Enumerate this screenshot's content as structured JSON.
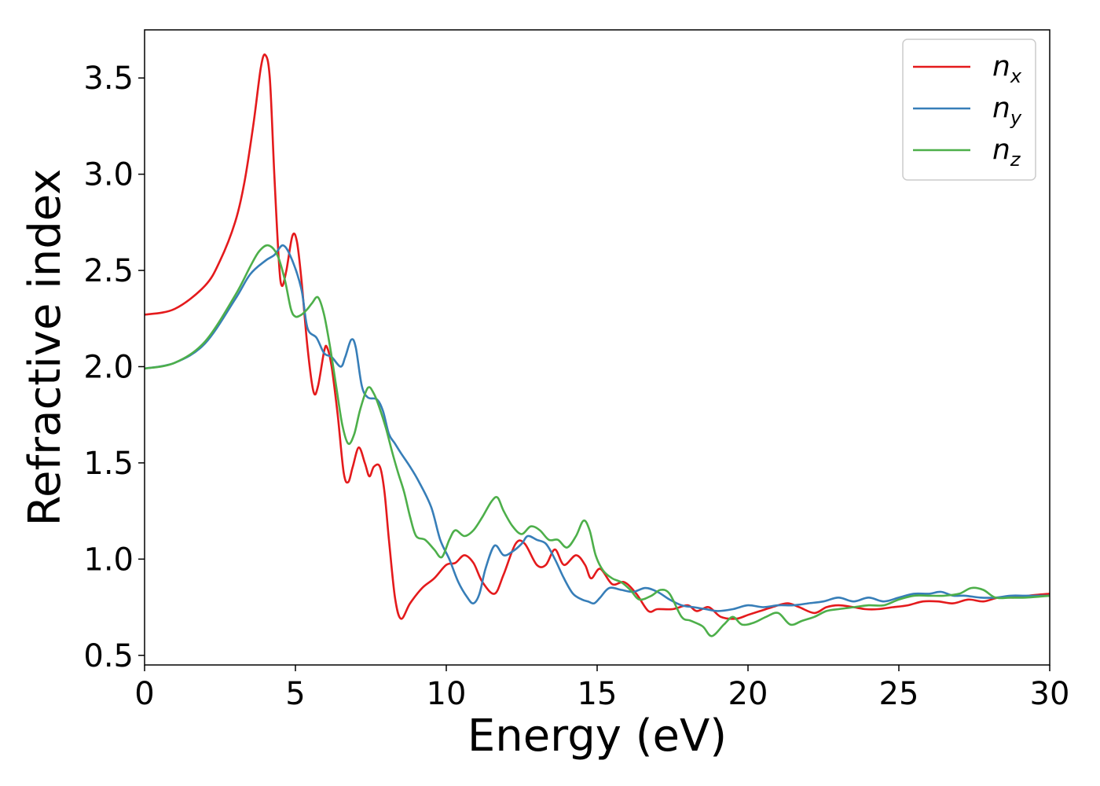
{
  "chart_data": {
    "type": "line",
    "title": "",
    "xlabel": "Energy (eV)",
    "ylabel": "Refractive index",
    "xlim": [
      0,
      30
    ],
    "ylim": [
      0.45,
      3.75
    ],
    "xticks": [
      0,
      5,
      10,
      15,
      20,
      25,
      30
    ],
    "xtick_labels": [
      "0",
      "5",
      "10",
      "15",
      "20",
      "25",
      "30"
    ],
    "yticks": [
      0.5,
      1.0,
      1.5,
      2.0,
      2.5,
      3.0,
      3.5
    ],
    "ytick_labels": [
      "0.5",
      "1.0",
      "1.5",
      "2.0",
      "2.5",
      "3.0",
      "3.5"
    ],
    "grid": false,
    "legend_position": "top-right",
    "series": [
      {
        "name": "n_x",
        "label_base": "n",
        "label_sub": "x",
        "color": "#e41a1c",
        "points": [
          [
            0,
            2.27
          ],
          [
            1,
            2.3
          ],
          [
            2,
            2.42
          ],
          [
            2.5,
            2.55
          ],
          [
            3,
            2.75
          ],
          [
            3.3,
            2.95
          ],
          [
            3.6,
            3.25
          ],
          [
            3.85,
            3.55
          ],
          [
            4.0,
            3.62
          ],
          [
            4.15,
            3.5
          ],
          [
            4.3,
            3.0
          ],
          [
            4.45,
            2.55
          ],
          [
            4.55,
            2.42
          ],
          [
            4.7,
            2.5
          ],
          [
            4.9,
            2.68
          ],
          [
            5.05,
            2.65
          ],
          [
            5.2,
            2.45
          ],
          [
            5.4,
            2.1
          ],
          [
            5.6,
            1.87
          ],
          [
            5.75,
            1.9
          ],
          [
            5.95,
            2.08
          ],
          [
            6.05,
            2.1
          ],
          [
            6.2,
            2.0
          ],
          [
            6.4,
            1.75
          ],
          [
            6.6,
            1.45
          ],
          [
            6.75,
            1.4
          ],
          [
            6.9,
            1.48
          ],
          [
            7.1,
            1.58
          ],
          [
            7.3,
            1.5
          ],
          [
            7.45,
            1.43
          ],
          [
            7.6,
            1.48
          ],
          [
            7.8,
            1.48
          ],
          [
            7.95,
            1.35
          ],
          [
            8.1,
            1.1
          ],
          [
            8.3,
            0.8
          ],
          [
            8.5,
            0.69
          ],
          [
            8.8,
            0.77
          ],
          [
            9.2,
            0.85
          ],
          [
            9.6,
            0.9
          ],
          [
            10.0,
            0.97
          ],
          [
            10.3,
            0.98
          ],
          [
            10.6,
            1.02
          ],
          [
            10.9,
            0.98
          ],
          [
            11.2,
            0.88
          ],
          [
            11.6,
            0.82
          ],
          [
            11.9,
            0.92
          ],
          [
            12.3,
            1.08
          ],
          [
            12.6,
            1.08
          ],
          [
            13.0,
            0.97
          ],
          [
            13.3,
            0.97
          ],
          [
            13.6,
            1.05
          ],
          [
            13.9,
            0.97
          ],
          [
            14.3,
            1.02
          ],
          [
            14.6,
            0.97
          ],
          [
            14.8,
            0.9
          ],
          [
            15.1,
            0.95
          ],
          [
            15.5,
            0.87
          ],
          [
            15.9,
            0.88
          ],
          [
            16.3,
            0.82
          ],
          [
            16.7,
            0.73
          ],
          [
            17.0,
            0.74
          ],
          [
            17.5,
            0.74
          ],
          [
            18.0,
            0.76
          ],
          [
            18.3,
            0.73
          ],
          [
            18.7,
            0.75
          ],
          [
            19.1,
            0.7
          ],
          [
            19.6,
            0.69
          ],
          [
            20.0,
            0.71
          ],
          [
            20.4,
            0.73
          ],
          [
            20.8,
            0.75
          ],
          [
            21.3,
            0.77
          ],
          [
            21.7,
            0.75
          ],
          [
            22.2,
            0.72
          ],
          [
            22.6,
            0.75
          ],
          [
            23.0,
            0.76
          ],
          [
            23.5,
            0.75
          ],
          [
            23.9,
            0.74
          ],
          [
            24.3,
            0.74
          ],
          [
            24.8,
            0.75
          ],
          [
            25.3,
            0.76
          ],
          [
            25.8,
            0.78
          ],
          [
            26.3,
            0.78
          ],
          [
            26.8,
            0.77
          ],
          [
            27.3,
            0.79
          ],
          [
            27.8,
            0.78
          ],
          [
            28.3,
            0.8
          ],
          [
            28.8,
            0.8
          ],
          [
            29.3,
            0.81
          ],
          [
            30,
            0.82
          ]
        ]
      },
      {
        "name": "n_y",
        "label_base": "n",
        "label_sub": "y",
        "color": "#377eb8",
        "points": [
          [
            0,
            1.99
          ],
          [
            1,
            2.02
          ],
          [
            2,
            2.12
          ],
          [
            3,
            2.35
          ],
          [
            3.5,
            2.48
          ],
          [
            4.0,
            2.55
          ],
          [
            4.3,
            2.58
          ],
          [
            4.6,
            2.63
          ],
          [
            4.9,
            2.55
          ],
          [
            5.2,
            2.4
          ],
          [
            5.4,
            2.2
          ],
          [
            5.7,
            2.15
          ],
          [
            5.95,
            2.07
          ],
          [
            6.2,
            2.05
          ],
          [
            6.5,
            2.0
          ],
          [
            6.65,
            2.05
          ],
          [
            6.85,
            2.14
          ],
          [
            7.0,
            2.1
          ],
          [
            7.2,
            1.9
          ],
          [
            7.4,
            1.84
          ],
          [
            7.7,
            1.83
          ],
          [
            7.9,
            1.77
          ],
          [
            8.1,
            1.65
          ],
          [
            8.3,
            1.6
          ],
          [
            8.5,
            1.55
          ],
          [
            8.8,
            1.48
          ],
          [
            9.1,
            1.4
          ],
          [
            9.5,
            1.27
          ],
          [
            9.8,
            1.1
          ],
          [
            10.1,
            1.0
          ],
          [
            10.4,
            0.88
          ],
          [
            10.7,
            0.8
          ],
          [
            10.9,
            0.77
          ],
          [
            11.1,
            0.82
          ],
          [
            11.3,
            0.95
          ],
          [
            11.6,
            1.07
          ],
          [
            11.9,
            1.02
          ],
          [
            12.2,
            1.04
          ],
          [
            12.5,
            1.08
          ],
          [
            12.7,
            1.12
          ],
          [
            13.0,
            1.1
          ],
          [
            13.3,
            1.08
          ],
          [
            13.6,
            1.0
          ],
          [
            13.9,
            0.9
          ],
          [
            14.2,
            0.82
          ],
          [
            14.5,
            0.79
          ],
          [
            14.7,
            0.78
          ],
          [
            14.9,
            0.77
          ],
          [
            15.1,
            0.8
          ],
          [
            15.4,
            0.85
          ],
          [
            15.8,
            0.84
          ],
          [
            16.2,
            0.83
          ],
          [
            16.6,
            0.85
          ],
          [
            17.0,
            0.83
          ],
          [
            17.4,
            0.79
          ],
          [
            17.8,
            0.76
          ],
          [
            18.2,
            0.75
          ],
          [
            18.6,
            0.74
          ],
          [
            19.0,
            0.73
          ],
          [
            19.5,
            0.74
          ],
          [
            20.0,
            0.76
          ],
          [
            20.5,
            0.75
          ],
          [
            21.0,
            0.76
          ],
          [
            21.5,
            0.76
          ],
          [
            22.0,
            0.77
          ],
          [
            22.5,
            0.78
          ],
          [
            23.0,
            0.8
          ],
          [
            23.5,
            0.78
          ],
          [
            24.0,
            0.8
          ],
          [
            24.5,
            0.78
          ],
          [
            25.0,
            0.8
          ],
          [
            25.5,
            0.82
          ],
          [
            26.0,
            0.82
          ],
          [
            26.4,
            0.83
          ],
          [
            26.8,
            0.81
          ],
          [
            27.2,
            0.81
          ],
          [
            27.7,
            0.8
          ],
          [
            28.2,
            0.8
          ],
          [
            28.7,
            0.81
          ],
          [
            29.2,
            0.81
          ],
          [
            30,
            0.81
          ]
        ]
      },
      {
        "name": "n_z",
        "label_base": "n",
        "label_sub": "z",
        "color": "#4daf4a",
        "points": [
          [
            0,
            1.99
          ],
          [
            1,
            2.02
          ],
          [
            2,
            2.13
          ],
          [
            3,
            2.37
          ],
          [
            3.5,
            2.52
          ],
          [
            3.8,
            2.6
          ],
          [
            4.1,
            2.63
          ],
          [
            4.4,
            2.58
          ],
          [
            4.65,
            2.45
          ],
          [
            4.85,
            2.3
          ],
          [
            5.0,
            2.26
          ],
          [
            5.2,
            2.27
          ],
          [
            5.4,
            2.3
          ],
          [
            5.55,
            2.33
          ],
          [
            5.75,
            2.36
          ],
          [
            5.95,
            2.27
          ],
          [
            6.15,
            2.1
          ],
          [
            6.35,
            1.9
          ],
          [
            6.55,
            1.7
          ],
          [
            6.75,
            1.6
          ],
          [
            6.95,
            1.65
          ],
          [
            7.15,
            1.78
          ],
          [
            7.4,
            1.89
          ],
          [
            7.6,
            1.86
          ],
          [
            7.8,
            1.78
          ],
          [
            8.0,
            1.68
          ],
          [
            8.2,
            1.56
          ],
          [
            8.4,
            1.45
          ],
          [
            8.6,
            1.35
          ],
          [
            8.8,
            1.22
          ],
          [
            9.0,
            1.12
          ],
          [
            9.3,
            1.1
          ],
          [
            9.6,
            1.05
          ],
          [
            9.85,
            1.01
          ],
          [
            10.1,
            1.1
          ],
          [
            10.3,
            1.15
          ],
          [
            10.6,
            1.12
          ],
          [
            10.9,
            1.15
          ],
          [
            11.2,
            1.22
          ],
          [
            11.5,
            1.3
          ],
          [
            11.7,
            1.32
          ],
          [
            11.9,
            1.25
          ],
          [
            12.2,
            1.17
          ],
          [
            12.5,
            1.13
          ],
          [
            12.8,
            1.17
          ],
          [
            13.1,
            1.15
          ],
          [
            13.4,
            1.1
          ],
          [
            13.7,
            1.1
          ],
          [
            14.0,
            1.06
          ],
          [
            14.3,
            1.12
          ],
          [
            14.55,
            1.2
          ],
          [
            14.75,
            1.15
          ],
          [
            14.95,
            1.02
          ],
          [
            15.2,
            0.94
          ],
          [
            15.5,
            0.9
          ],
          [
            15.8,
            0.88
          ],
          [
            16.1,
            0.84
          ],
          [
            16.4,
            0.79
          ],
          [
            16.8,
            0.81
          ],
          [
            17.1,
            0.84
          ],
          [
            17.4,
            0.82
          ],
          [
            17.8,
            0.7
          ],
          [
            18.1,
            0.68
          ],
          [
            18.5,
            0.65
          ],
          [
            18.8,
            0.6
          ],
          [
            19.2,
            0.66
          ],
          [
            19.5,
            0.7
          ],
          [
            19.8,
            0.66
          ],
          [
            20.2,
            0.67
          ],
          [
            20.6,
            0.7
          ],
          [
            21.0,
            0.72
          ],
          [
            21.4,
            0.66
          ],
          [
            21.8,
            0.68
          ],
          [
            22.2,
            0.7
          ],
          [
            22.6,
            0.73
          ],
          [
            23.0,
            0.74
          ],
          [
            23.5,
            0.75
          ],
          [
            24.0,
            0.76
          ],
          [
            24.5,
            0.76
          ],
          [
            25.0,
            0.79
          ],
          [
            25.5,
            0.81
          ],
          [
            26.0,
            0.81
          ],
          [
            26.5,
            0.81
          ],
          [
            27.0,
            0.82
          ],
          [
            27.4,
            0.85
          ],
          [
            27.8,
            0.84
          ],
          [
            28.2,
            0.8
          ],
          [
            28.7,
            0.8
          ],
          [
            29.2,
            0.8
          ],
          [
            30,
            0.81
          ]
        ]
      }
    ]
  }
}
